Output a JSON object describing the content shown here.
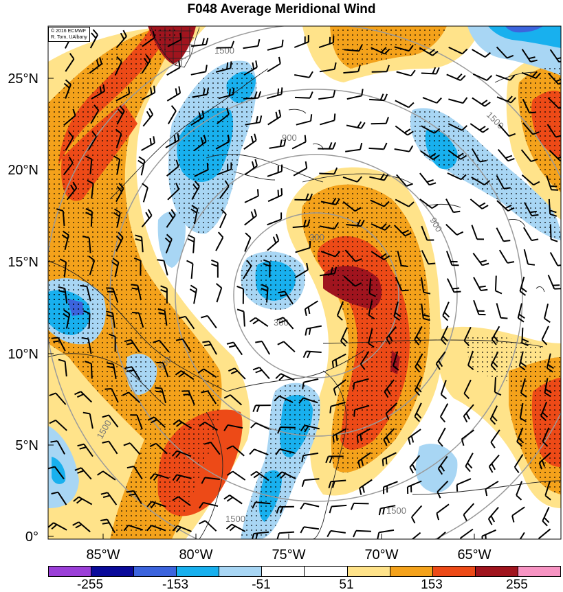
{
  "title": "F048 Average Meridional Wind",
  "credit": {
    "line1": "© 2016 ECMWF",
    "line2": "R. Torn, UAlbany"
  },
  "latitude_labels": [
    "25°N",
    "20°N",
    "15°N",
    "10°N",
    "5°N",
    "0°"
  ],
  "longitude_labels": [
    "85°W",
    "80°W",
    "75°W",
    "70°W",
    "65°W"
  ],
  "colorbar": {
    "colors": [
      "#9b3fd8",
      "#0a0a9a",
      "#3c64dd",
      "#18b0ee",
      "#a8d6f4",
      "#ffffff",
      "#ffffff",
      "#ffe38a",
      "#f4a21b",
      "#ed4a17",
      "#a0141e",
      "#f794c3"
    ],
    "labels": [
      "-255",
      "-153",
      "-51",
      "51",
      "153",
      "255"
    ]
  },
  "range_ring_labels": [
    "300",
    "900",
    "1500"
  ],
  "map_colors": {
    "pos_light": "#ffe38a",
    "pos_mid": "#f4a21b",
    "pos_strong": "#ed4a17",
    "pos_max": "#a0141e",
    "neg_light": "#a8d6f4",
    "neg_mid": "#18b0ee",
    "neg_strong": "#3c64dd",
    "ring": "#9a9a9a"
  }
}
